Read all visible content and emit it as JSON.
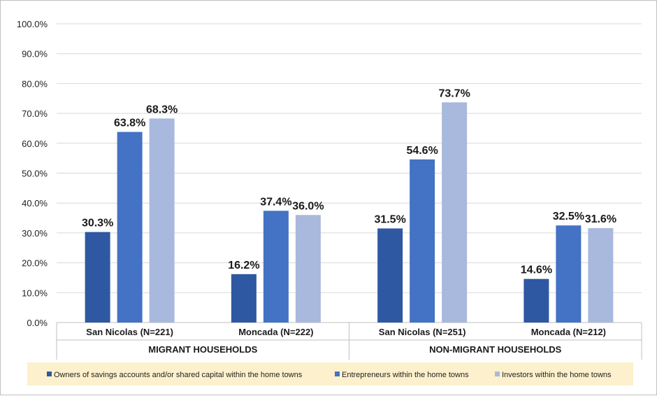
{
  "chart_data": {
    "type": "bar",
    "groups": [
      {
        "label": "MIGRANT HOUSEHOLDS",
        "categories": [
          "San Nicolas (N=221)",
          "Moncada (N=222)"
        ]
      },
      {
        "label": "NON-MIGRANT HOUSEHOLDS",
        "categories": [
          "San Nicolas (N=251)",
          "Moncada (N=212)"
        ]
      }
    ],
    "categories": [
      "San Nicolas (N=221)",
      "Moncada (N=222)",
      "San Nicolas (N=251)",
      "Moncada (N=212)"
    ],
    "series": [
      {
        "name": "Owners of savings accounts and/or shared capital within the home towns",
        "color": "#2f58a2",
        "values": [
          30.3,
          16.2,
          31.5,
          14.6
        ],
        "labels": [
          "30.3%",
          "16.2%",
          "31.5%",
          "14.6%"
        ]
      },
      {
        "name": "Entrepreneurs within the home towns",
        "color": "#4472c4",
        "values": [
          63.8,
          37.4,
          54.6,
          32.5
        ],
        "labels": [
          "63.8%",
          "37.4%",
          "54.6%",
          "32.5%"
        ]
      },
      {
        "name": "Investors within the home towns",
        "color": "#a9b8dd",
        "values": [
          68.3,
          36.0,
          73.7,
          31.6
        ],
        "labels": [
          "68.3%",
          "36.0%",
          "73.7%",
          "31.6%"
        ]
      }
    ],
    "y_ticks": [
      0,
      10,
      20,
      30,
      40,
      50,
      60,
      70,
      80,
      90,
      100
    ],
    "y_tick_labels": [
      "0.0%",
      "10.0%",
      "20.0%",
      "30.0%",
      "40.0%",
      "50.0%",
      "60.0%",
      "70.0%",
      "80.0%",
      "90.0%",
      "100.0%"
    ],
    "ylim": [
      0,
      100
    ],
    "grid": true,
    "legend_position": "bottom",
    "legend_background": "#fdf0cc",
    "gridline_color": "#d9d9d9"
  }
}
